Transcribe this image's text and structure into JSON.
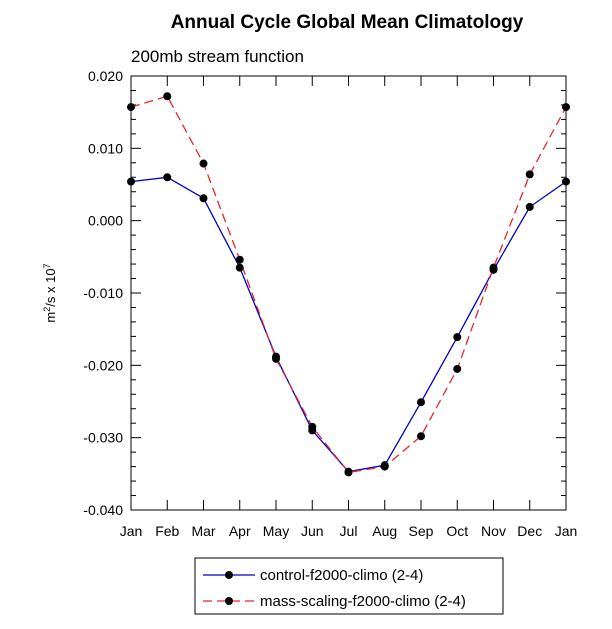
{
  "chart_data": {
    "type": "line",
    "title": "Annual Cycle Global Mean Climatology",
    "subtitle": "200mb stream function",
    "xlabel": "",
    "ylabel_base": "m",
    "ylabel_sup1": "2",
    "ylabel_mid": "/s x 10",
    "ylabel_sup2": "7",
    "categories": [
      "Jan",
      "Feb",
      "Mar",
      "Apr",
      "May",
      "Jun",
      "Jul",
      "Aug",
      "Sep",
      "Oct",
      "Nov",
      "Dec",
      "Jan"
    ],
    "ylim": [
      -0.04,
      0.02
    ],
    "yticks": [
      "0.020",
      "0.010",
      "0.000",
      "-0.010",
      "-0.020",
      "-0.030",
      "-0.040"
    ],
    "grid": false,
    "legend_position": "bottom",
    "series": [
      {
        "name": "control-f2000-climo (2-4)",
        "color": "#0000cc",
        "dash": "solid",
        "values": [
          0.0054,
          0.006,
          0.0031,
          -0.0065,
          -0.0188,
          -0.029,
          -0.0347,
          -0.0338,
          -0.0251,
          -0.0161,
          -0.0068,
          0.0019,
          0.0054
        ]
      },
      {
        "name": "mass-scaling-f2000-climo (2-4)",
        "color": "#e8262c",
        "dash": "dashed",
        "values": [
          0.0157,
          0.0172,
          0.0079,
          -0.0054,
          -0.0191,
          -0.0285,
          -0.0348,
          -0.034,
          -0.0298,
          -0.0205,
          -0.0065,
          0.0064,
          0.0157
        ]
      }
    ]
  }
}
